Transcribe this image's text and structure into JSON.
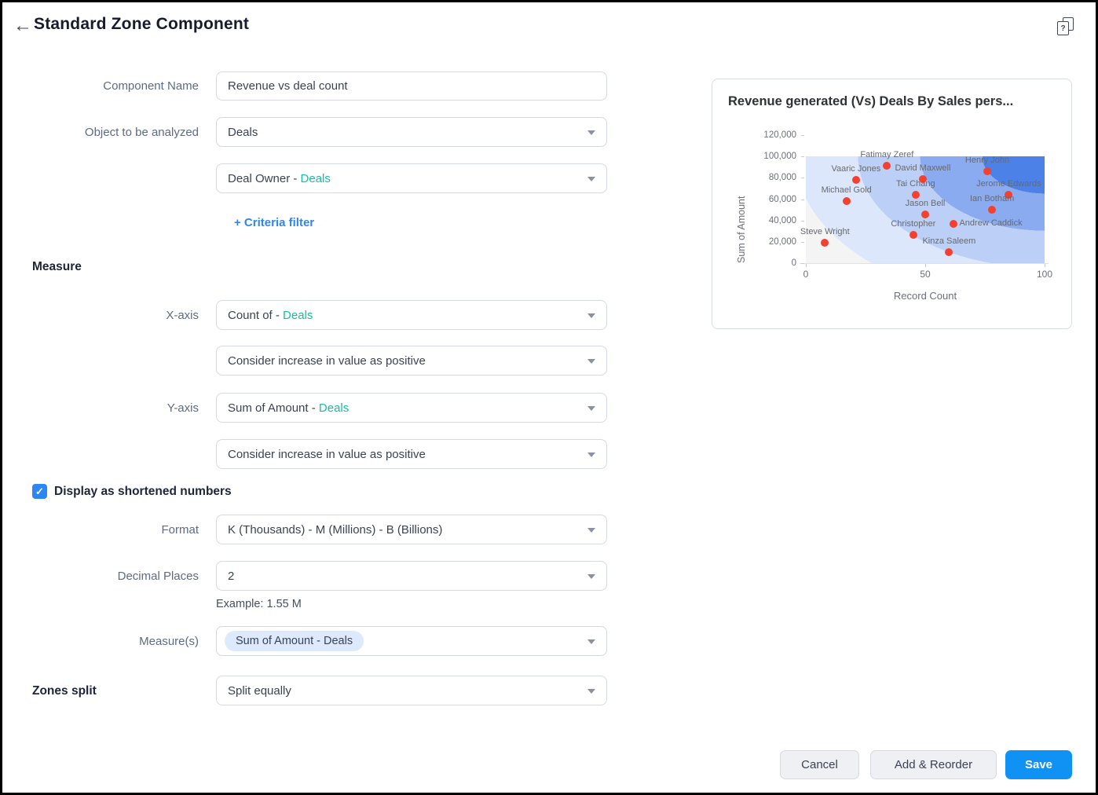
{
  "header": {
    "title": "Standard Zone Component",
    "back_icon": "←",
    "help_icon": "?"
  },
  "form": {
    "component_name": {
      "label": "Component Name",
      "value": "Revenue vs deal count"
    },
    "object": {
      "label": "Object to be analyzed",
      "value": "Deals"
    },
    "dimension": {
      "prefix": "Deal Owner - ",
      "module": "Deals"
    },
    "criteria_filter_label": "+ Criteria filter",
    "measure_heading": "Measure",
    "x_axis": {
      "label": "X-axis",
      "prefix": "Count of - ",
      "module": "Deals"
    },
    "x_direction": "Consider increase in value as positive",
    "y_axis": {
      "label": "Y-axis",
      "prefix": "Sum of Amount - ",
      "module": "Deals"
    },
    "y_direction": "Consider increase in value as positive",
    "shortened_numbers": {
      "label": "Display as shortened numbers",
      "checked": true,
      "check_glyph": "✓"
    },
    "format": {
      "label": "Format",
      "value": "K (Thousands) - M (Millions) - B (Billions)"
    },
    "decimal_places": {
      "label": "Decimal Places",
      "value": "2"
    },
    "example": "Example: 1.55 M",
    "measures": {
      "label": "Measure(s)",
      "value": "Sum of Amount - Deals"
    },
    "zones_split": {
      "label": "Zones split",
      "value": "Split equally"
    }
  },
  "buttons": {
    "cancel": "Cancel",
    "add_reorder": "Add & Reorder",
    "save": "Save"
  },
  "colors": {
    "accent_teal": "#14bfa6",
    "link_blue": "#2e86ee",
    "checkbox_blue": "#2b87f5",
    "save_blue": "#1092f4",
    "point_red": "#f4402f"
  },
  "chart_data": {
    "type": "scatter",
    "title": "Revenue generated (Vs) Deals By Sales pers...",
    "xlabel": "Record Count",
    "ylabel": "Sum of Amount",
    "xlim": [
      0,
      100
    ],
    "ylim": [
      0,
      120000
    ],
    "x_ticks": [
      "0",
      "50",
      "100"
    ],
    "y_ticks": [
      "120,000",
      "100,000",
      "80,000",
      "60,000",
      "40,000",
      "20,000",
      "0"
    ],
    "grid": false,
    "legend": "none",
    "point_color": "#f4402f",
    "zone_colors": [
      "#4c82e8",
      "#8aabf0",
      "#bccff6",
      "#dde7fb",
      "#f4f4f5"
    ],
    "points": [
      {
        "label": "Fatimay Zeref",
        "x": 34,
        "y": 91000,
        "label_pos": "top"
      },
      {
        "label": "Vaaric Jones",
        "x": 21,
        "y": 78000,
        "label_pos": "top"
      },
      {
        "label": "David Maxwell",
        "x": 49,
        "y": 78500,
        "label_pos": "top"
      },
      {
        "label": "Henry John",
        "x": 76,
        "y": 86500,
        "label_pos": "top"
      },
      {
        "label": "Michael Gold",
        "x": 17,
        "y": 58000,
        "label_pos": "top"
      },
      {
        "label": "Tai Chang",
        "x": 46,
        "y": 64000,
        "label_pos": "top"
      },
      {
        "label": "Jerome Edwards",
        "x": 85,
        "y": 64000,
        "label_pos": "top"
      },
      {
        "label": "Jason Bell",
        "x": 50,
        "y": 45500,
        "label_pos": "top"
      },
      {
        "label": "Ian Botham",
        "x": 78,
        "y": 50000,
        "label_pos": "top"
      },
      {
        "label": "Andrew Caddick",
        "x": 62,
        "y": 36500,
        "label_pos": "right"
      },
      {
        "label": "Christopher",
        "x": 45,
        "y": 26500,
        "label_pos": "top"
      },
      {
        "label": "Steve Wright",
        "x": 8,
        "y": 19000,
        "label_pos": "top"
      },
      {
        "label": "Kinza Saleem",
        "x": 60,
        "y": 10500,
        "label_pos": "top"
      }
    ]
  }
}
